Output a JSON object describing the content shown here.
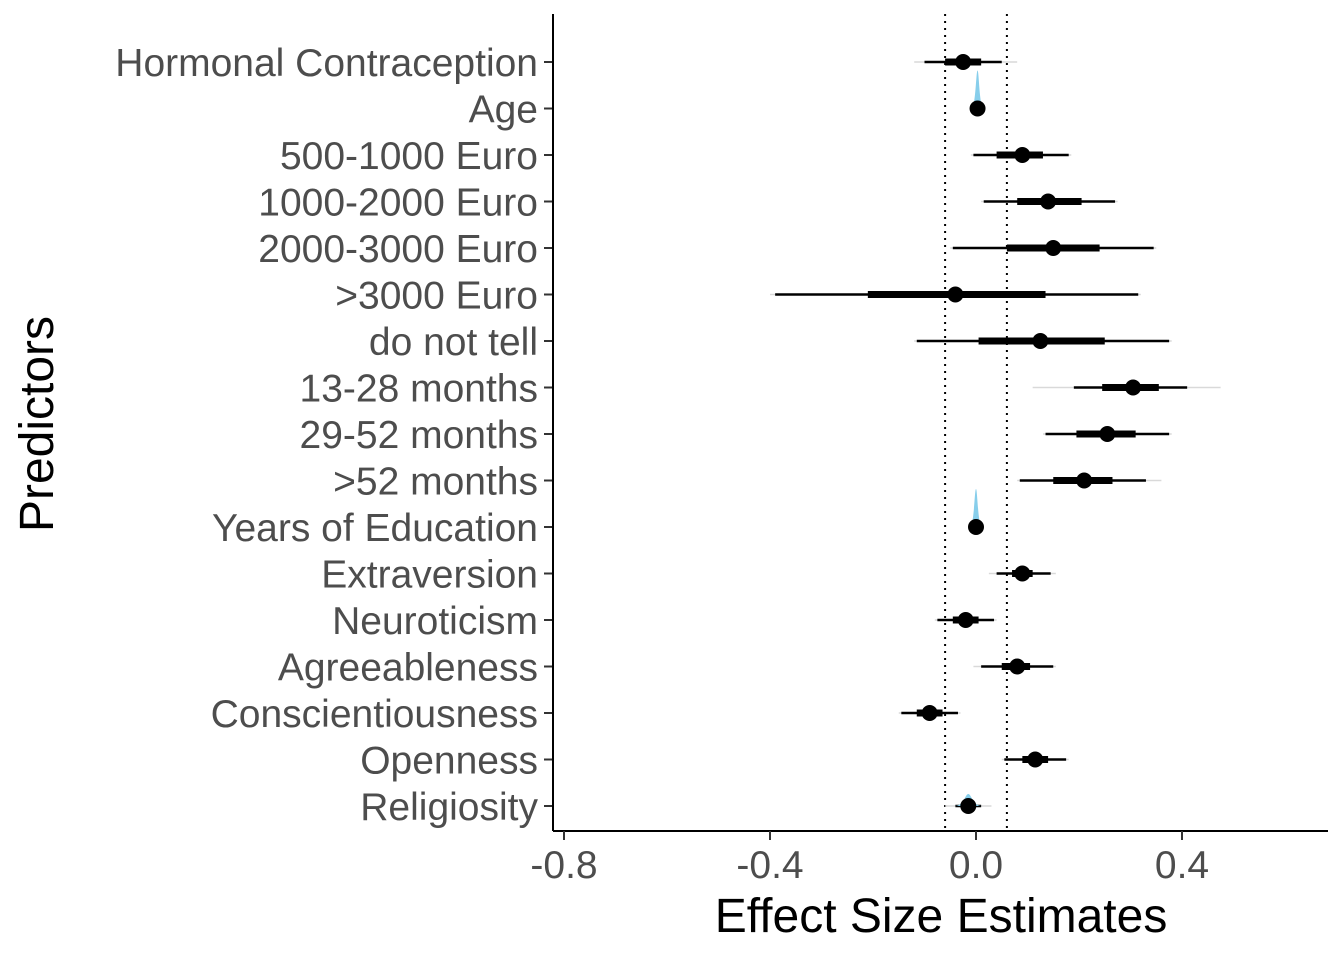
{
  "chart_data": {
    "type": "forest",
    "xlabel": "Effect Size Estimates",
    "ylabel": "Predictors",
    "xlim": [
      -0.82,
      0.68
    ],
    "x_ticks": [
      -0.8,
      -0.4,
      0.0,
      0.4
    ],
    "x_tick_labels": [
      "-0.8",
      "-0.4",
      "0.0",
      "0.4"
    ],
    "rope": [
      -0.06,
      0.06
    ],
    "grid": false,
    "point_color": "#000000",
    "density_color": "#87CEEB",
    "predictors": [
      {
        "label": "Hormonal Contraception",
        "estimate": -0.025,
        "inner": [
          -0.06,
          0.01
        ],
        "outer": [
          -0.1,
          0.05
        ],
        "tail": [
          -0.12,
          0.08
        ]
      },
      {
        "label": "Age",
        "estimate": 0.003,
        "inner": [
          0.0,
          0.006
        ],
        "outer": [
          -0.003,
          0.009
        ],
        "tail": [
          -0.005,
          0.011
        ],
        "density": true
      },
      {
        "label": "500-1000 Euro",
        "estimate": 0.09,
        "inner": [
          0.04,
          0.13
        ],
        "outer": [
          -0.005,
          0.18
        ],
        "tail": [
          -0.01,
          0.185
        ]
      },
      {
        "label": "1000-2000 Euro",
        "estimate": 0.14,
        "inner": [
          0.08,
          0.205
        ],
        "outer": [
          0.015,
          0.27
        ],
        "tail": [
          0.01,
          0.275
        ]
      },
      {
        "label": "2000-3000 Euro",
        "estimate": 0.15,
        "inner": [
          0.06,
          0.24
        ],
        "outer": [
          -0.045,
          0.345
        ],
        "tail": [
          -0.05,
          0.35
        ]
      },
      {
        "label": ">3000 Euro",
        "estimate": -0.04,
        "inner": [
          -0.21,
          0.135
        ],
        "outer": [
          -0.39,
          0.315
        ],
        "tail": [
          -0.4,
          0.32
        ]
      },
      {
        "label": "do not tell",
        "estimate": 0.125,
        "inner": [
          0.005,
          0.25
        ],
        "outer": [
          -0.115,
          0.375
        ],
        "tail": [
          -0.12,
          0.38
        ]
      },
      {
        "label": "13-28 months",
        "estimate": 0.305,
        "inner": [
          0.245,
          0.355
        ],
        "outer": [
          0.19,
          0.41
        ],
        "tail": [
          0.11,
          0.475
        ]
      },
      {
        "label": "29-52 months",
        "estimate": 0.255,
        "inner": [
          0.195,
          0.31
        ],
        "outer": [
          0.135,
          0.375
        ],
        "tail": [
          0.13,
          0.38
        ]
      },
      {
        "label": ">52 months",
        "estimate": 0.21,
        "inner": [
          0.15,
          0.265
        ],
        "outer": [
          0.085,
          0.33
        ],
        "tail": [
          0.08,
          0.36
        ]
      },
      {
        "label": "Years of Education",
        "estimate": 0.0,
        "inner": [
          -0.003,
          0.003
        ],
        "outer": [
          -0.006,
          0.006
        ],
        "tail": [
          -0.008,
          0.008
        ],
        "density": true
      },
      {
        "label": "Extraversion",
        "estimate": 0.09,
        "inner": [
          0.07,
          0.11
        ],
        "outer": [
          0.04,
          0.145
        ],
        "tail": [
          0.025,
          0.155
        ]
      },
      {
        "label": "Neuroticism",
        "estimate": -0.02,
        "inner": [
          -0.045,
          0.005
        ],
        "outer": [
          -0.075,
          0.035
        ],
        "tail": [
          -0.08,
          0.04
        ]
      },
      {
        "label": "Agreeableness",
        "estimate": 0.08,
        "inner": [
          0.05,
          0.105
        ],
        "outer": [
          0.01,
          0.15
        ],
        "tail": [
          -0.005,
          0.155
        ]
      },
      {
        "label": "Conscientiousness",
        "estimate": -0.09,
        "inner": [
          -0.115,
          -0.065
        ],
        "outer": [
          -0.145,
          -0.035
        ],
        "tail": [
          -0.15,
          -0.03
        ]
      },
      {
        "label": "Openness",
        "estimate": 0.115,
        "inner": [
          0.09,
          0.14
        ],
        "outer": [
          0.055,
          0.175
        ],
        "tail": [
          0.05,
          0.18
        ]
      },
      {
        "label": "Religiosity",
        "estimate": -0.015,
        "inner": [
          -0.025,
          -0.005
        ],
        "outer": [
          -0.04,
          0.01
        ],
        "tail": [
          -0.06,
          0.03
        ],
        "density": true
      }
    ]
  }
}
